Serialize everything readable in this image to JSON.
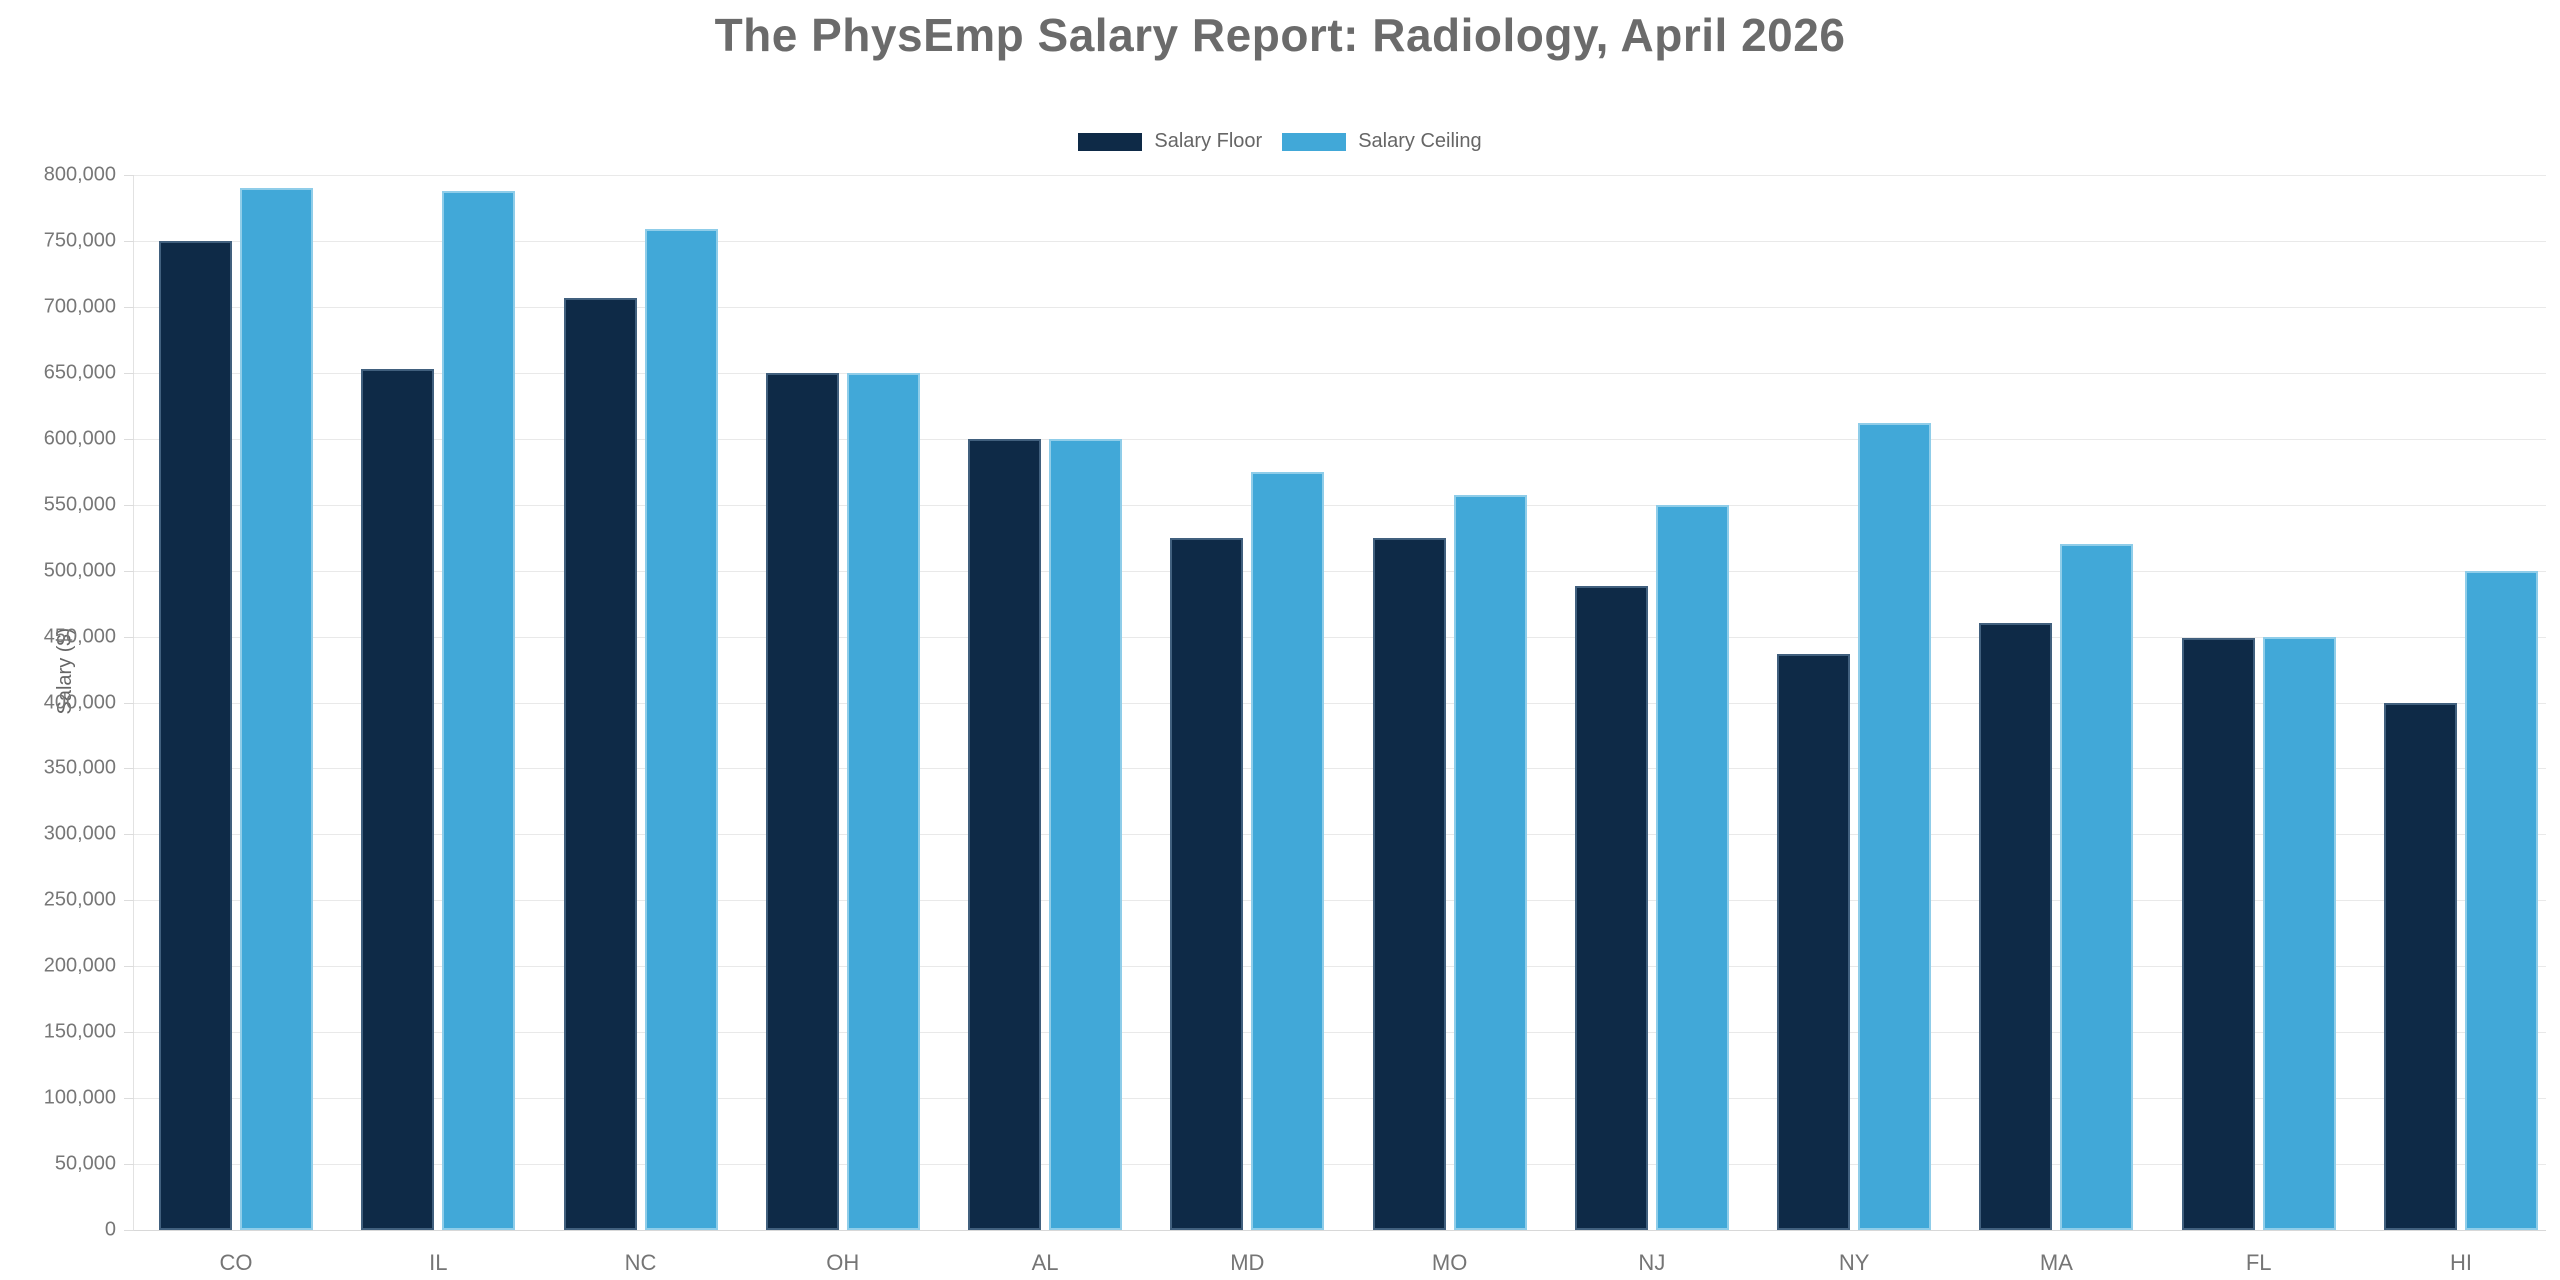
{
  "title": "The PhysEmp Salary Report: Radiology, April 2026",
  "legend": {
    "items": [
      {
        "label": "Salary Floor",
        "color": "#0e2a47",
        "border_color": "#41607e"
      },
      {
        "label": "Salary Ceiling",
        "color": "#41a8d8",
        "border_color": "#8fcde9"
      }
    ],
    "position": "top-center"
  },
  "colors": {
    "salary_floor": "#0e2a47",
    "salary_ceiling": "#41a8d8",
    "gridline": "#e9e9e9",
    "title_text": "#6b6b6b",
    "axis_text": "#777777"
  },
  "chart_data": {
    "type": "bar",
    "title": "The PhysEmp Salary Report: Radiology, April 2026",
    "xlabel": "",
    "ylabel": "Salary ($)",
    "ylim": [
      0,
      800000
    ],
    "y_tick_step": 50000,
    "y_tick_labels": [
      "800,000",
      "750,000",
      "700,000",
      "650,000",
      "600,000",
      "550,000",
      "500,000",
      "450,000",
      "400,000",
      "350,000",
      "300,000",
      "250,000",
      "200,000",
      "150,000",
      "100,000",
      "50,000",
      "0"
    ],
    "grid": true,
    "legend_position": "top-center",
    "categories": [
      "CO",
      "IL",
      "NC",
      "OH",
      "AL",
      "MD",
      "MO",
      "NJ",
      "NY",
      "MA",
      "FL",
      "HI"
    ],
    "series": [
      {
        "name": "Salary Floor",
        "color": "#0e2a47",
        "values": [
          750000,
          653000,
          707000,
          650000,
          600000,
          525000,
          525000,
          488000,
          437000,
          460000,
          449000,
          400000
        ]
      },
      {
        "name": "Salary Ceiling",
        "color": "#41a8d8",
        "values": [
          790000,
          787500,
          759000,
          650000,
          600000,
          575000,
          557000,
          550000,
          612000,
          520000,
          450000,
          500000
        ]
      }
    ]
  }
}
